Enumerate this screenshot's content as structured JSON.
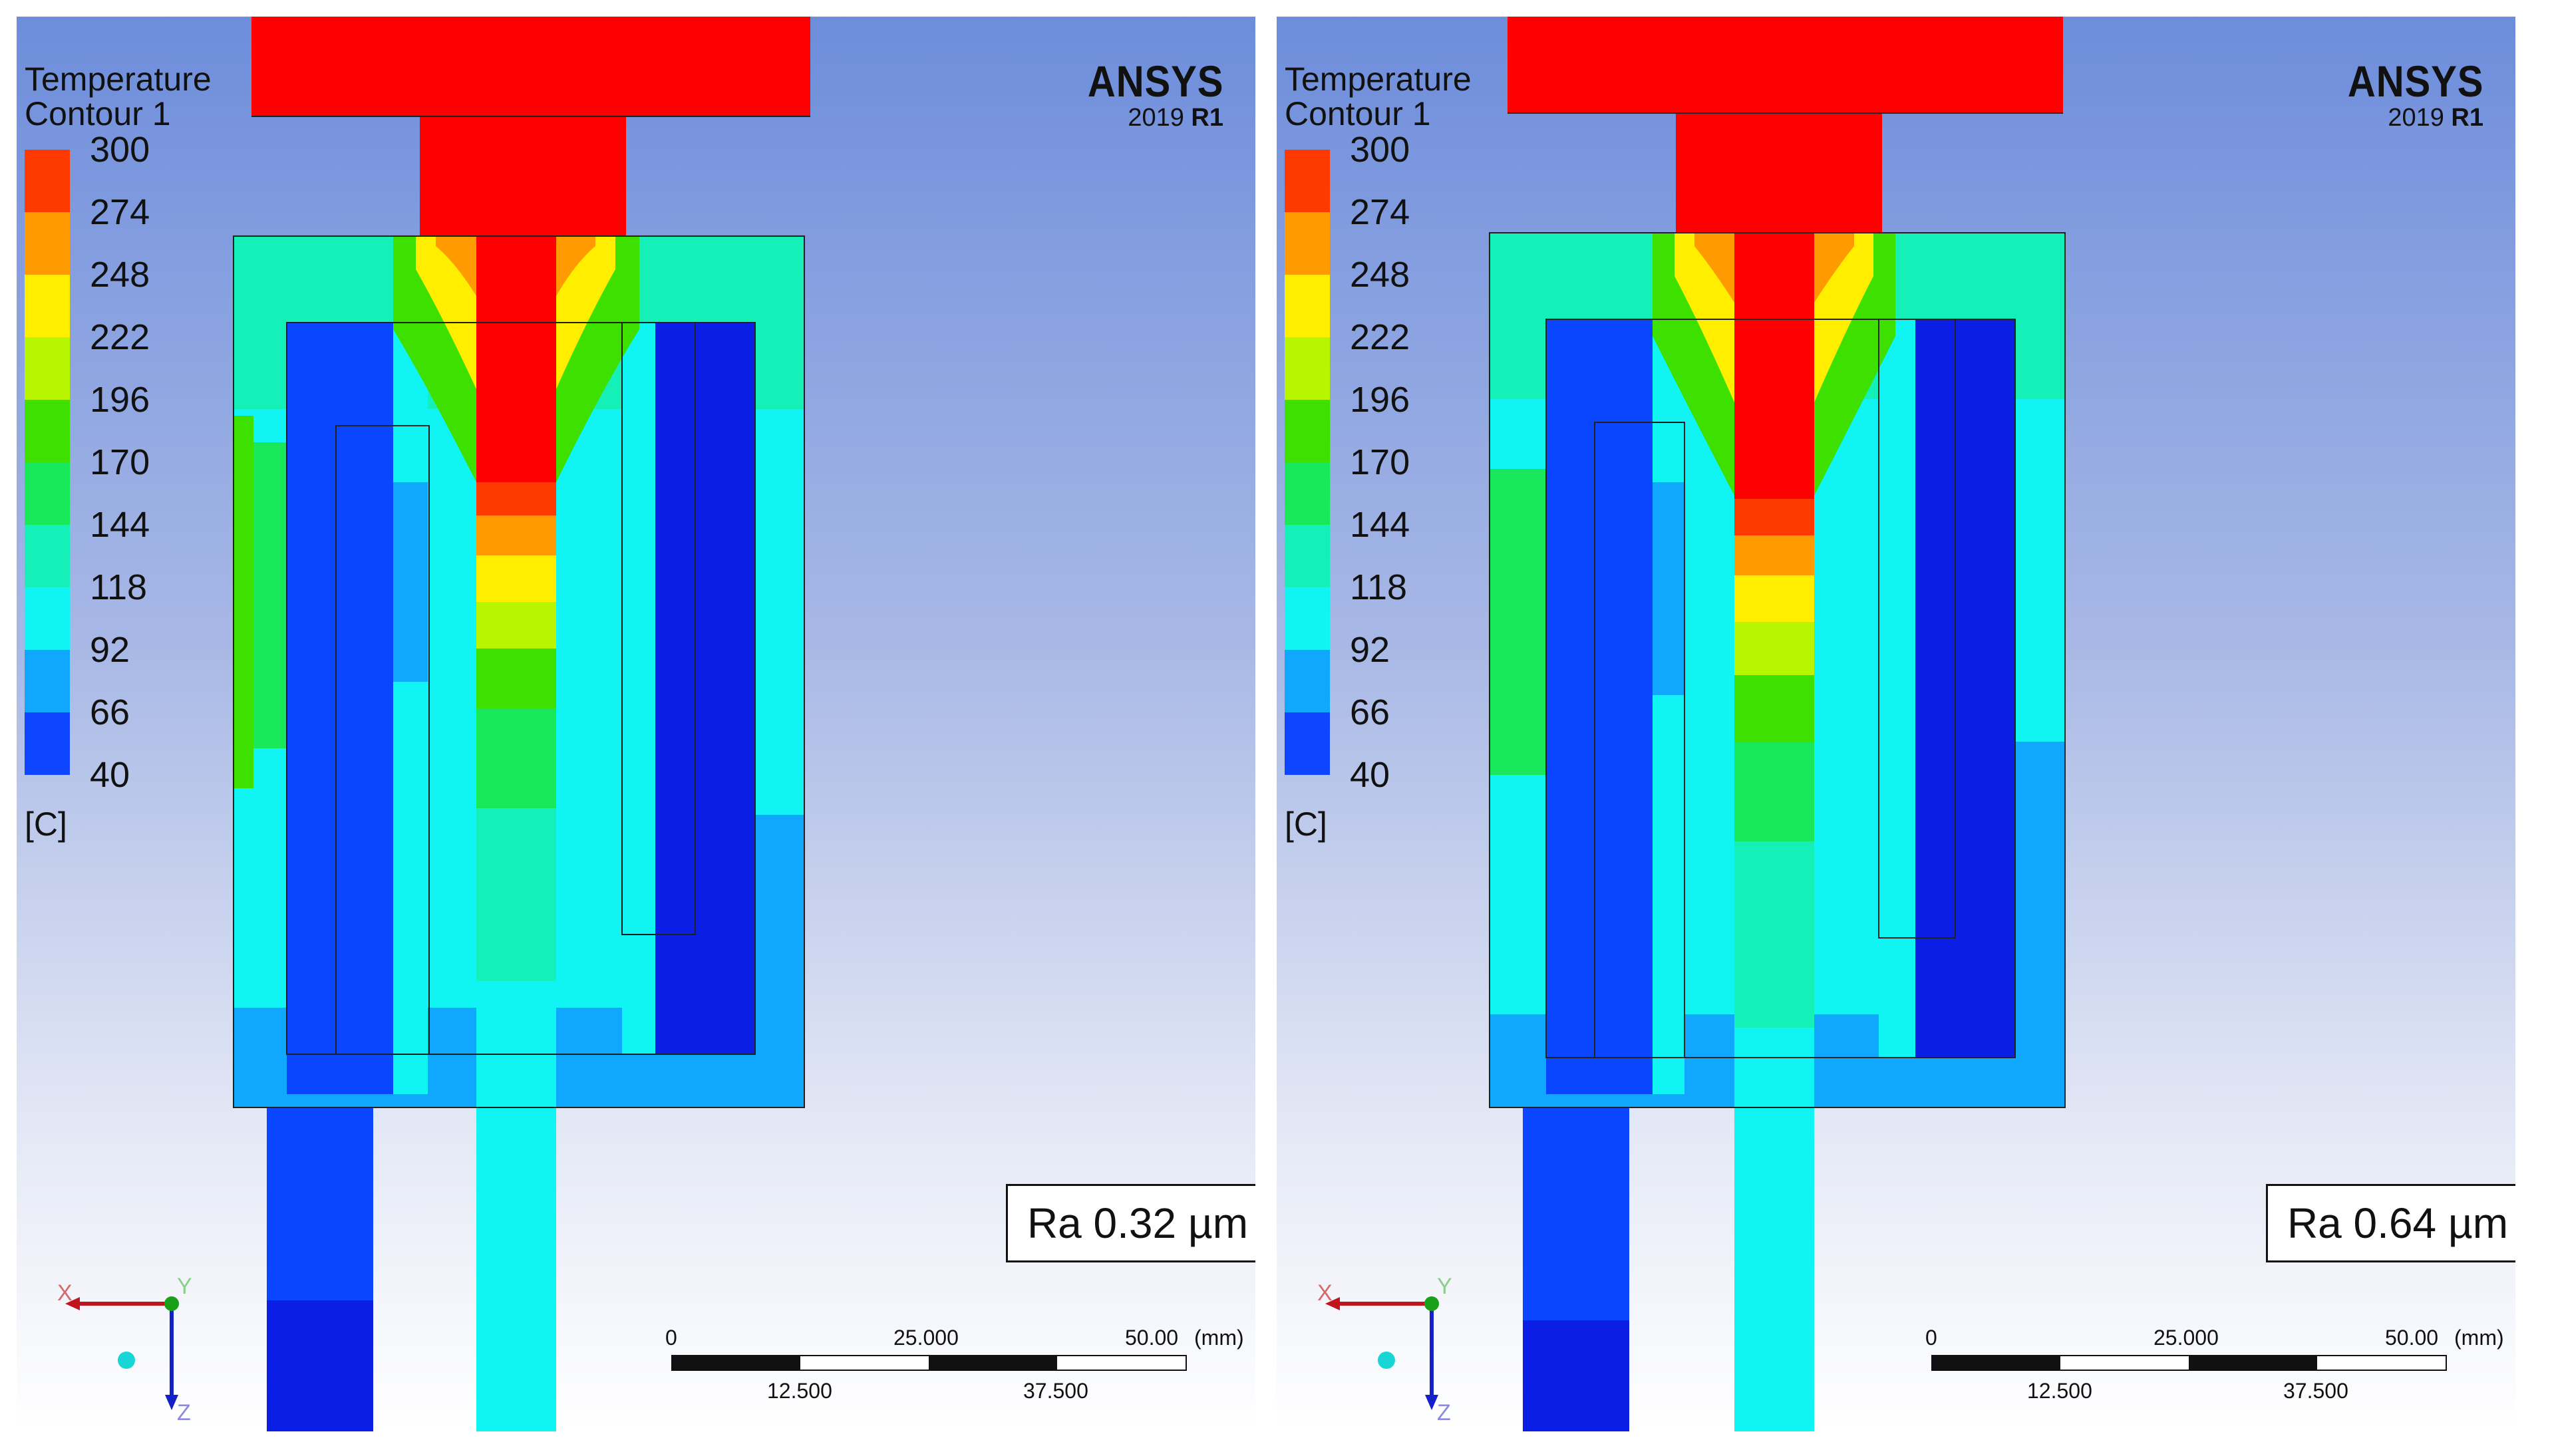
{
  "panels": [
    {
      "title": "Temperature",
      "subtitle": "Contour 1",
      "brand": "ANSYS",
      "version_year": "2019",
      "version_release": "R1",
      "legend_labels": [
        "300",
        "274",
        "248",
        "222",
        "196",
        "170",
        "144",
        "118",
        "92",
        "66",
        "40"
      ],
      "unit": "[C]",
      "roughness_label": "Ra 0.32 µm",
      "scale_top": [
        "0",
        "25.000",
        "50.00",
        "(mm)"
      ],
      "scale_bottom": [
        "12.500",
        "37.500"
      ],
      "axis_labels": [
        "X",
        "Y",
        "Z"
      ]
    },
    {
      "title": "Temperature",
      "subtitle": "Contour 1",
      "brand": "ANSYS",
      "version_year": "2019",
      "version_release": "R1",
      "legend_labels": [
        "300",
        "274",
        "248",
        "222",
        "196",
        "170",
        "144",
        "118",
        "92",
        "66",
        "40"
      ],
      "unit": "[C]",
      "roughness_label": "Ra 0.64 µm",
      "scale_top": [
        "0",
        "25.000",
        "50.00",
        "(mm)"
      ],
      "scale_bottom": [
        "12.500",
        "37.500"
      ],
      "axis_labels": [
        "X",
        "Y",
        "Z"
      ]
    }
  ],
  "legend_colors": [
    "#ff3a00",
    "#ff9a00",
    "#ffee00",
    "#b8f500",
    "#3ee000",
    "#18e85a",
    "#14f0b8",
    "#10f4f4",
    "#10a8ff",
    "#0e46ff"
  ],
  "colors": {
    "hot": "#ff0000",
    "cold": "#0a1ee6",
    "axis_x": "#c0141e",
    "axis_z": "#1420c8",
    "axis_y": "#18a018"
  }
}
